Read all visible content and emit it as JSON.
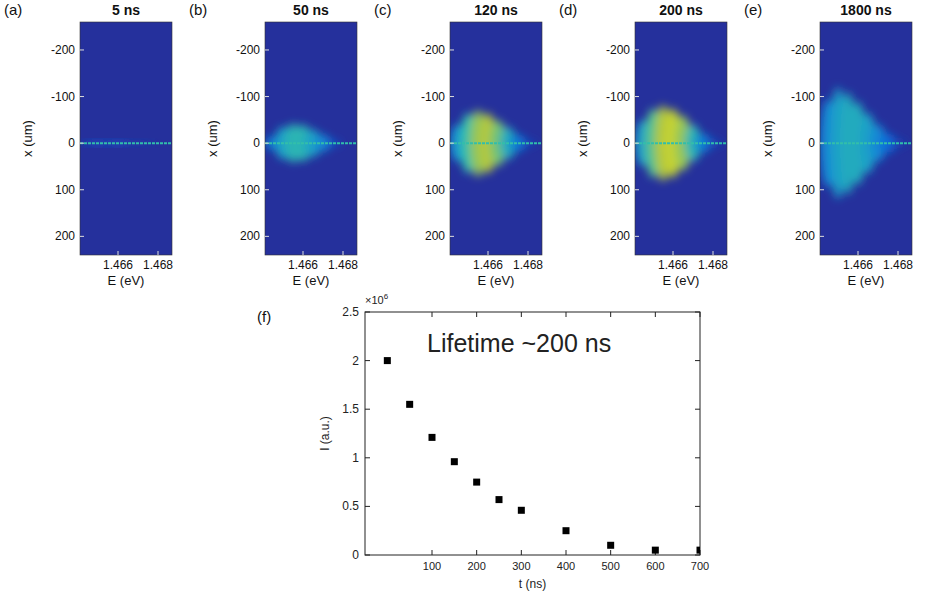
{
  "chart_data": [
    {
      "type": "image",
      "label": "(a)",
      "title": "5 ns",
      "xlabel": "E (eV)",
      "ylabel": "x (um)",
      "xlim": [
        1.4641,
        1.4687
      ],
      "xticks": [
        1.466,
        1.468
      ],
      "ylim": [
        240,
        -260
      ],
      "yticks": [
        -200,
        -100,
        0,
        100,
        200
      ],
      "clim": [
        0,
        1
      ],
      "center_line": 0,
      "glow": {
        "E": [
          1.465,
          1.466,
          1.467
        ],
        "halfwidth": [
          5,
          5,
          3
        ],
        "intensity": [
          0.15,
          0.15,
          0.1
        ]
      }
    },
    {
      "type": "image",
      "label": "(b)",
      "title": "50 ns",
      "xlabel": "E (eV)",
      "ylabel": "x (um)",
      "xlim": [
        1.4641,
        1.4687
      ],
      "xticks": [
        1.466,
        1.468
      ],
      "ylim": [
        240,
        -260
      ],
      "yticks": [
        -200,
        -100,
        0,
        100,
        200
      ],
      "clim": [
        0,
        1
      ],
      "center_line": 0,
      "glow": {
        "E": [
          1.4645,
          1.465,
          1.4655,
          1.466,
          1.4665,
          1.467,
          1.4675
        ],
        "halfwidth": [
          15,
          35,
          42,
          40,
          30,
          18,
          5
        ],
        "intensity": [
          0.3,
          0.45,
          0.55,
          0.55,
          0.45,
          0.35,
          0.2
        ]
      }
    },
    {
      "type": "image",
      "label": "(c)",
      "title": "120 ns",
      "xlabel": "E (eV)",
      "ylabel": "x (um)",
      "xlim": [
        1.4641,
        1.4687
      ],
      "xticks": [
        1.466,
        1.468
      ],
      "ylim": [
        240,
        -260
      ],
      "yticks": [
        -200,
        -100,
        0,
        100,
        200
      ],
      "clim": [
        0,
        1
      ],
      "center_line": 0,
      "glow": {
        "E": [
          1.4645,
          1.465,
          1.4655,
          1.466,
          1.4665,
          1.467,
          1.4675,
          1.468
        ],
        "halfwidth": [
          40,
          65,
          72,
          65,
          50,
          35,
          18,
          5
        ],
        "intensity": [
          0.4,
          0.6,
          0.75,
          0.8,
          0.7,
          0.5,
          0.3,
          0.15
        ]
      }
    },
    {
      "type": "image",
      "label": "(d)",
      "title": "200 ns",
      "xlabel": "E (eV)",
      "ylabel": "x (um)",
      "xlim": [
        1.4641,
        1.4687
      ],
      "xticks": [
        1.466,
        1.468
      ],
      "ylim": [
        240,
        -260
      ],
      "yticks": [
        -200,
        -100,
        0,
        100,
        200
      ],
      "clim": [
        0,
        1
      ],
      "center_line": 0,
      "glow": {
        "E": [
          1.4645,
          1.465,
          1.4655,
          1.466,
          1.4665,
          1.467,
          1.4675,
          1.468
        ],
        "halfwidth": [
          50,
          75,
          82,
          75,
          60,
          40,
          20,
          6
        ],
        "intensity": [
          0.45,
          0.65,
          0.8,
          0.85,
          0.75,
          0.55,
          0.32,
          0.15
        ]
      }
    },
    {
      "type": "image",
      "label": "(e)",
      "title": "1800 ns",
      "xlabel": "E (eV)",
      "ylabel": "x (um)",
      "xlim": [
        1.4641,
        1.4687
      ],
      "xticks": [
        1.466,
        1.468
      ],
      "ylim": [
        240,
        -260
      ],
      "yticks": [
        -200,
        -100,
        0,
        100,
        200
      ],
      "clim": [
        0,
        1
      ],
      "center_line": 0,
      "glow": {
        "E": [
          1.4645,
          1.465,
          1.4655,
          1.466,
          1.4665,
          1.467,
          1.4675,
          1.468
        ],
        "halfwidth": [
          95,
          120,
          110,
          90,
          65,
          40,
          20,
          6
        ],
        "intensity": [
          0.35,
          0.45,
          0.5,
          0.5,
          0.45,
          0.35,
          0.25,
          0.12
        ]
      }
    },
    {
      "type": "scatter",
      "label": "(f)",
      "xlabel": "t (ns)",
      "ylabel": "I (a.u.)",
      "y_multiplier": {
        "base": "×10",
        "exponent": "6"
      },
      "annotation": "Lifetime ~200 ns",
      "x": [
        0,
        50,
        100,
        150,
        200,
        250,
        300,
        400,
        500,
        600,
        700
      ],
      "values": [
        2.0,
        1.55,
        1.21,
        0.96,
        0.75,
        0.57,
        0.46,
        0.25,
        0.1,
        0.05,
        0.05
      ],
      "color": "#000000",
      "marker": "square",
      "xlim": [
        -50,
        700
      ],
      "xticks": [
        100,
        200,
        300,
        400,
        500,
        600,
        700
      ],
      "ylim": [
        0,
        2.5
      ],
      "yticks": [
        0,
        0.5,
        1,
        1.5,
        2,
        2.5
      ]
    }
  ]
}
